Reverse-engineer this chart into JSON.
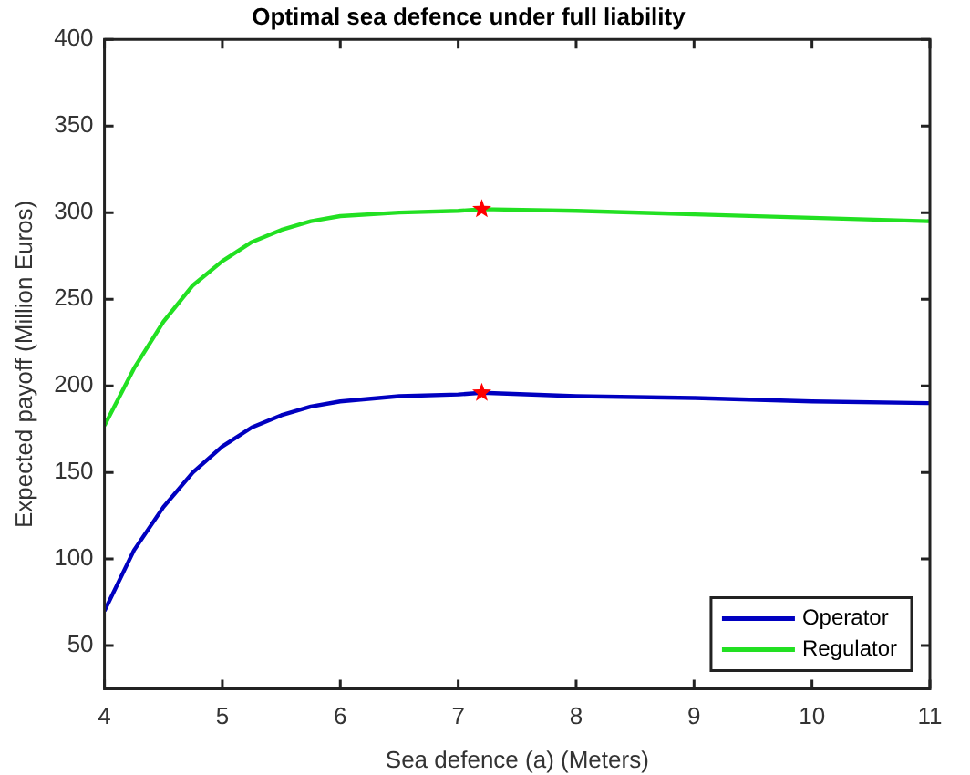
{
  "chart_data": {
    "type": "line",
    "title": "Optimal sea defence under full liability",
    "xlabel": "Sea defence (a) (Meters)",
    "ylabel": "Expected payoff (Million Euros)",
    "x": [
      4,
      4.25,
      4.5,
      4.75,
      5,
      5.25,
      5.5,
      5.75,
      6,
      6.5,
      7,
      7.2,
      8,
      9,
      10,
      11
    ],
    "series": [
      {
        "name": "Operator",
        "color": "#0000c0",
        "values": [
          70,
          105,
          130,
          150,
          165,
          176,
          183,
          188,
          191,
          194,
          195,
          196,
          194,
          193,
          191,
          190
        ]
      },
      {
        "name": "Regulator",
        "color": "#22e022",
        "values": [
          177,
          210,
          237,
          258,
          272,
          283,
          290,
          295,
          298,
          300,
          301,
          302,
          301,
          299,
          297,
          295
        ]
      },
      {
        "type": "scatter",
        "color": "#ff0000",
        "marker": "star",
        "x": [
          7.2,
          7.2
        ],
        "values": [
          196,
          302
        ]
      }
    ],
    "xlim": [
      4,
      11
    ],
    "xticks": [
      4,
      5,
      6,
      7,
      8,
      9,
      10,
      11
    ],
    "ylim": [
      25,
      400
    ],
    "yticks": [
      50,
      100,
      150,
      200,
      250,
      300,
      350,
      400
    ],
    "grid": false,
    "legend": "bottom right",
    "marker": "none",
    "line_style": "solid"
  }
}
